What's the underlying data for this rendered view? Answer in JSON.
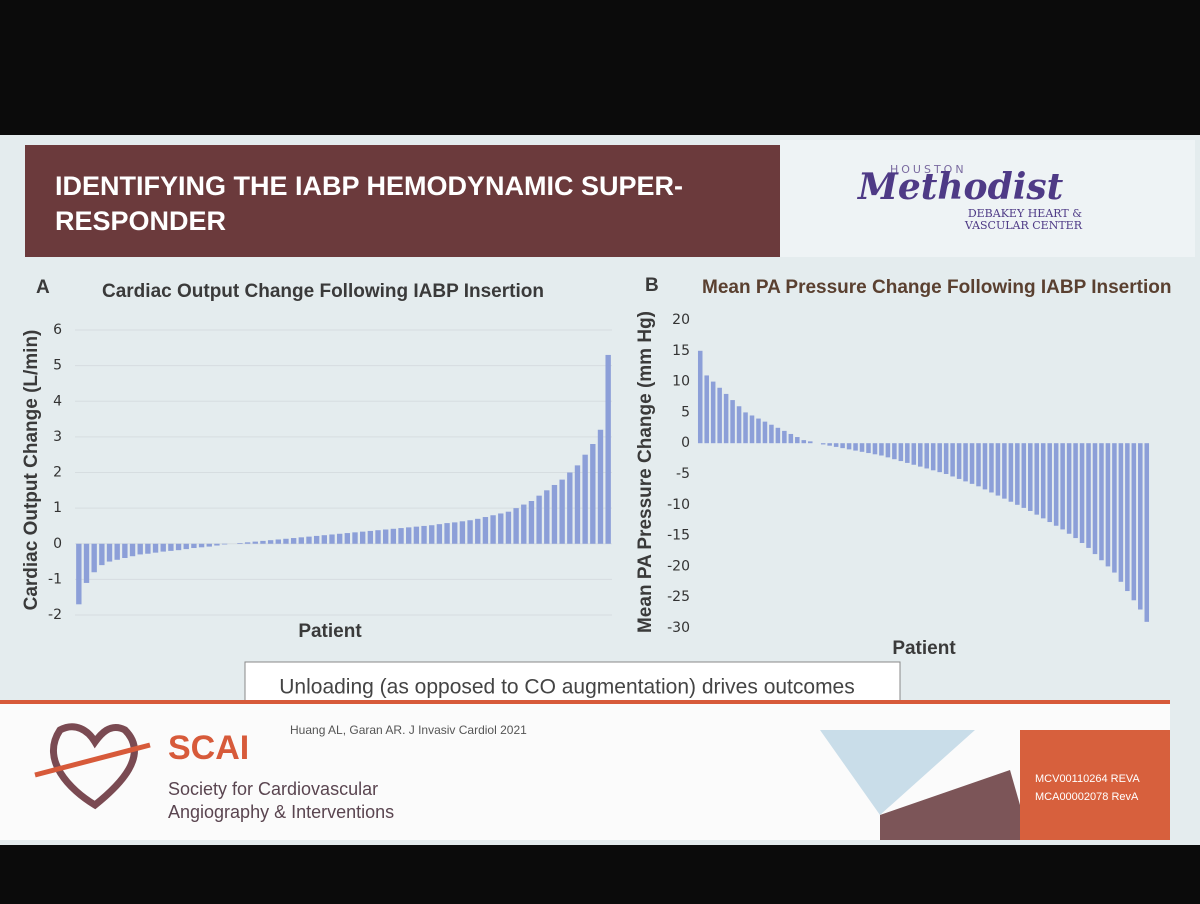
{
  "header": {
    "title_line1": "IDENTIFYING THE IABP HEMODYNAMIC SUPER-",
    "title_line2": "RESPONDER",
    "logo_top": "HOUSTON",
    "logo_main": "Methodist",
    "logo_sub1": "DEBAKEY HEART &",
    "logo_sub2": "VASCULAR CENTER"
  },
  "chart_data": [
    {
      "type": "bar",
      "panel": "A",
      "title": "Cardiac Output Change Following IABP Insertion",
      "x_label": "Patient",
      "y_label": "Cardiac Output Change (L/min)",
      "color": "#8c9fd8",
      "grid": true,
      "ylim": [
        -2,
        6
      ],
      "yticks": [
        -2,
        -1,
        0,
        1,
        2,
        3,
        4,
        5,
        6
      ],
      "values": [
        -1.7,
        -1.1,
        -0.8,
        -0.6,
        -0.5,
        -0.45,
        -0.4,
        -0.35,
        -0.3,
        -0.28,
        -0.25,
        -0.22,
        -0.2,
        -0.18,
        -0.15,
        -0.12,
        -0.1,
        -0.08,
        -0.05,
        -0.02,
        0,
        0.02,
        0.04,
        0.06,
        0.08,
        0.1,
        0.12,
        0.14,
        0.16,
        0.18,
        0.2,
        0.22,
        0.24,
        0.26,
        0.28,
        0.3,
        0.32,
        0.34,
        0.36,
        0.38,
        0.4,
        0.42,
        0.44,
        0.46,
        0.48,
        0.5,
        0.52,
        0.55,
        0.58,
        0.6,
        0.63,
        0.66,
        0.7,
        0.75,
        0.8,
        0.85,
        0.9,
        1.0,
        1.1,
        1.2,
        1.35,
        1.5,
        1.65,
        1.8,
        2.0,
        2.2,
        2.5,
        2.8,
        3.2,
        5.3
      ]
    },
    {
      "type": "bar",
      "panel": "B",
      "title": "Mean PA Pressure Change Following IABP Insertion",
      "x_label": "Patient",
      "y_label": "Mean PA Pressure Change (mm Hg)",
      "color": "#8c9fd8",
      "grid": false,
      "ylim": [
        -30,
        20
      ],
      "yticks": [
        -30,
        -25,
        -20,
        -15,
        -10,
        -5,
        0,
        5,
        10,
        15,
        20
      ],
      "values": [
        15,
        11,
        10,
        9,
        8,
        7,
        6,
        5,
        4.5,
        4,
        3.5,
        3,
        2.5,
        2,
        1.5,
        1,
        0.5,
        0.3,
        0,
        -0.2,
        -0.4,
        -0.6,
        -0.8,
        -1,
        -1.2,
        -1.4,
        -1.6,
        -1.8,
        -2,
        -2.3,
        -2.6,
        -2.9,
        -3.2,
        -3.5,
        -3.8,
        -4.1,
        -4.4,
        -4.7,
        -5,
        -5.4,
        -5.8,
        -6.2,
        -6.6,
        -7,
        -7.5,
        -8,
        -8.5,
        -9,
        -9.5,
        -10,
        -10.5,
        -11,
        -11.6,
        -12.2,
        -12.8,
        -13.4,
        -14,
        -14.7,
        -15.4,
        -16.2,
        -17,
        -18,
        -19,
        -20,
        -21,
        -22.5,
        -24,
        -25.5,
        -27,
        -29
      ]
    }
  ],
  "callout": "Unloading (as opposed to CO augmentation) drives outcomes",
  "citation": "Huang AL, Garan AR. J Invasiv Cardiol 2021",
  "footer": {
    "org_short": "SCAI",
    "org_line1": "Society for Cardiovascular",
    "org_line2": "Angiography & Interventions",
    "code1": "MCV00110264 REVA",
    "code2": "MCA00002078 RevA"
  }
}
